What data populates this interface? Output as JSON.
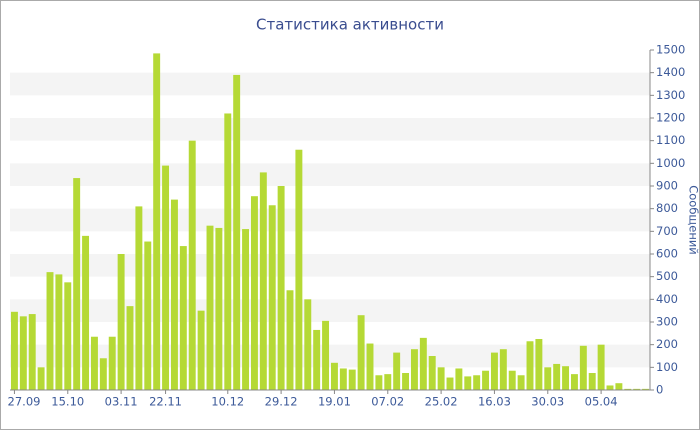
{
  "chart_data": {
    "type": "bar",
    "title": "Статистика активности",
    "y_label": "Сообщений",
    "categories": [
      "27.09",
      null,
      null,
      null,
      null,
      null,
      "15.10",
      null,
      null,
      null,
      null,
      null,
      "03.11",
      null,
      null,
      null,
      null,
      "22.11",
      null,
      null,
      null,
      null,
      null,
      null,
      "10.12",
      null,
      null,
      null,
      null,
      null,
      "29.12",
      null,
      null,
      null,
      null,
      null,
      "19.01",
      null,
      null,
      null,
      null,
      null,
      "07.02",
      null,
      null,
      null,
      null,
      null,
      "25.02",
      null,
      null,
      null,
      null,
      null,
      "16.03",
      null,
      null,
      null,
      null,
      null,
      "30.03",
      null,
      null,
      null,
      null,
      null,
      "05.04",
      null,
      null,
      null,
      null,
      null
    ],
    "values": [
      345,
      325,
      335,
      100,
      520,
      510,
      475,
      935,
      680,
      235,
      140,
      235,
      600,
      370,
      810,
      655,
      1485,
      990,
      840,
      635,
      1100,
      350,
      725,
      715,
      1220,
      1390,
      710,
      855,
      960,
      815,
      900,
      440,
      1060,
      400,
      265,
      305,
      120,
      95,
      90,
      330,
      205,
      65,
      70,
      165,
      75,
      180,
      230,
      150,
      100,
      55,
      95,
      60,
      65,
      85,
      165,
      180,
      85,
      65,
      215,
      225,
      100,
      115,
      105,
      70,
      195,
      75,
      200,
      20,
      30,
      5,
      5,
      5
    ],
    "color": "#b5d935",
    "ylim": [
      0,
      1500
    ],
    "yticks": [
      0,
      100,
      200,
      300,
      400,
      500,
      600,
      700,
      800,
      900,
      1000,
      1100,
      1200,
      1300,
      1400,
      1500
    ],
    "grid": true
  }
}
